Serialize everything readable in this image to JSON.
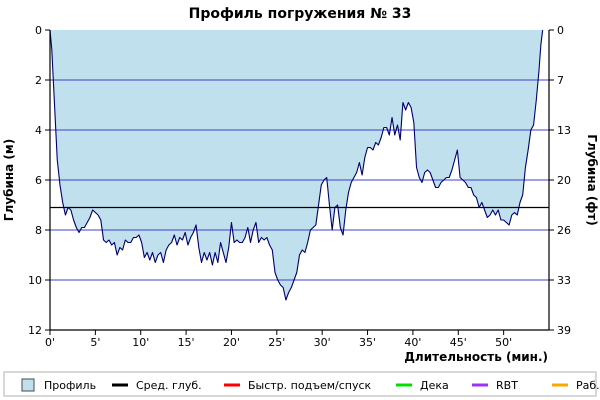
{
  "chart_data": {
    "type": "area",
    "title": "Профиль погружения № 33",
    "xlabel": "Длительность (мин.)",
    "ylabel_left": "Глубина (м)",
    "ylabel_right": "Глубина (фт)",
    "xlim": [
      0,
      55
    ],
    "ylim": [
      0,
      12
    ],
    "y_inverted": true,
    "x_ticks": [
      {
        "value": 0,
        "label": "0'"
      },
      {
        "value": 5,
        "label": "5'"
      },
      {
        "value": 10,
        "label": "10'"
      },
      {
        "value": 15,
        "label": "15'"
      },
      {
        "value": 20,
        "label": "20'"
      },
      {
        "value": 25,
        "label": "25'"
      },
      {
        "value": 30,
        "label": "30'"
      },
      {
        "value": 35,
        "label": "35'"
      },
      {
        "value": 40,
        "label": "40'"
      },
      {
        "value": 45,
        "label": "45'"
      },
      {
        "value": 50,
        "label": "50'"
      }
    ],
    "y_ticks_left": [
      {
        "value": 0,
        "label": "0"
      },
      {
        "value": 2,
        "label": "2"
      },
      {
        "value": 4,
        "label": "4"
      },
      {
        "value": 6,
        "label": "6"
      },
      {
        "value": 8,
        "label": "8"
      },
      {
        "value": 10,
        "label": "10"
      },
      {
        "value": 12,
        "label": "12"
      }
    ],
    "y_ticks_right": [
      {
        "value": 0,
        "label": "0"
      },
      {
        "value": 2,
        "label": "7"
      },
      {
        "value": 4,
        "label": "13"
      },
      {
        "value": 6,
        "label": "20"
      },
      {
        "value": 8,
        "label": "26"
      },
      {
        "value": 10,
        "label": "33"
      },
      {
        "value": 12,
        "label": "39"
      }
    ],
    "grid": "horizontal",
    "average_depth": 7.1,
    "colors": {
      "fill": "#c0e0ee",
      "line": "#00006e",
      "grid": "#4040c8",
      "average": "#000000",
      "fast": "#ff0000",
      "deco": "#00e000",
      "rbt": "#9933ff",
      "work": "#ffa500"
    },
    "profile": [
      [
        0,
        0
      ],
      [
        0.2,
        0.8
      ],
      [
        0.5,
        3.0
      ],
      [
        0.8,
        5.2
      ],
      [
        1.1,
        6.2
      ],
      [
        1.4,
        6.9
      ],
      [
        1.7,
        7.4
      ],
      [
        2.0,
        7.1
      ],
      [
        2.3,
        7.2
      ],
      [
        2.6,
        7.6
      ],
      [
        2.9,
        7.9
      ],
      [
        3.2,
        8.1
      ],
      [
        3.5,
        7.9
      ],
      [
        3.8,
        7.9
      ],
      [
        4.1,
        7.7
      ],
      [
        4.4,
        7.5
      ],
      [
        4.7,
        7.2
      ],
      [
        5.0,
        7.3
      ],
      [
        5.3,
        7.4
      ],
      [
        5.6,
        7.6
      ],
      [
        5.9,
        8.4
      ],
      [
        6.2,
        8.5
      ],
      [
        6.5,
        8.4
      ],
      [
        6.8,
        8.6
      ],
      [
        7.1,
        8.5
      ],
      [
        7.4,
        9.0
      ],
      [
        7.7,
        8.7
      ],
      [
        8.0,
        8.8
      ],
      [
        8.3,
        8.4
      ],
      [
        8.6,
        8.5
      ],
      [
        8.9,
        8.5
      ],
      [
        9.2,
        8.3
      ],
      [
        9.5,
        8.3
      ],
      [
        9.8,
        8.2
      ],
      [
        10.1,
        8.5
      ],
      [
        10.4,
        9.1
      ],
      [
        10.7,
        8.9
      ],
      [
        11.0,
        9.2
      ],
      [
        11.3,
        8.9
      ],
      [
        11.6,
        9.3
      ],
      [
        11.9,
        9.0
      ],
      [
        12.2,
        8.9
      ],
      [
        12.5,
        9.3
      ],
      [
        12.8,
        8.8
      ],
      [
        13.1,
        8.6
      ],
      [
        13.4,
        8.5
      ],
      [
        13.7,
        8.2
      ],
      [
        14.0,
        8.6
      ],
      [
        14.3,
        8.3
      ],
      [
        14.6,
        8.4
      ],
      [
        14.9,
        8.1
      ],
      [
        15.2,
        8.6
      ],
      [
        15.5,
        8.3
      ],
      [
        15.8,
        8.1
      ],
      [
        16.1,
        7.8
      ],
      [
        16.4,
        8.7
      ],
      [
        16.7,
        9.3
      ],
      [
        17.0,
        8.9
      ],
      [
        17.3,
        9.2
      ],
      [
        17.6,
        8.9
      ],
      [
        17.9,
        9.4
      ],
      [
        18.2,
        8.9
      ],
      [
        18.5,
        9.3
      ],
      [
        18.8,
        8.5
      ],
      [
        19.1,
        8.9
      ],
      [
        19.4,
        9.3
      ],
      [
        19.7,
        8.7
      ],
      [
        20.0,
        7.7
      ],
      [
        20.3,
        8.5
      ],
      [
        20.6,
        8.4
      ],
      [
        20.9,
        8.5
      ],
      [
        21.2,
        8.5
      ],
      [
        21.5,
        8.3
      ],
      [
        21.8,
        7.9
      ],
      [
        22.1,
        8.5
      ],
      [
        22.4,
        8.0
      ],
      [
        22.7,
        7.7
      ],
      [
        23.0,
        8.5
      ],
      [
        23.3,
        8.3
      ],
      [
        23.6,
        8.4
      ],
      [
        23.9,
        8.3
      ],
      [
        24.2,
        8.6
      ],
      [
        24.5,
        8.8
      ],
      [
        24.8,
        9.7
      ],
      [
        25.1,
        10.0
      ],
      [
        25.4,
        10.2
      ],
      [
        25.7,
        10.3
      ],
      [
        26.0,
        10.8
      ],
      [
        26.3,
        10.5
      ],
      [
        26.6,
        10.3
      ],
      [
        26.9,
        10.0
      ],
      [
        27.2,
        9.7
      ],
      [
        27.5,
        9.0
      ],
      [
        27.8,
        8.8
      ],
      [
        28.1,
        8.9
      ],
      [
        28.4,
        8.5
      ],
      [
        28.7,
        8.0
      ],
      [
        29.0,
        7.9
      ],
      [
        29.3,
        7.8
      ],
      [
        29.6,
        7.0
      ],
      [
        29.9,
        6.2
      ],
      [
        30.2,
        6.0
      ],
      [
        30.5,
        5.9
      ],
      [
        30.8,
        7.0
      ],
      [
        31.1,
        8.0
      ],
      [
        31.4,
        7.1
      ],
      [
        31.7,
        7.0
      ],
      [
        32.0,
        7.9
      ],
      [
        32.3,
        8.2
      ],
      [
        32.6,
        7.2
      ],
      [
        32.9,
        6.5
      ],
      [
        33.2,
        6.1
      ],
      [
        33.5,
        5.9
      ],
      [
        33.8,
        5.7
      ],
      [
        34.1,
        5.3
      ],
      [
        34.4,
        5.8
      ],
      [
        34.7,
        5.1
      ],
      [
        35.0,
        4.7
      ],
      [
        35.3,
        4.7
      ],
      [
        35.6,
        4.8
      ],
      [
        35.9,
        4.5
      ],
      [
        36.2,
        4.6
      ],
      [
        36.5,
        4.3
      ],
      [
        36.8,
        3.9
      ],
      [
        37.1,
        3.9
      ],
      [
        37.4,
        4.2
      ],
      [
        37.7,
        3.5
      ],
      [
        38.0,
        4.2
      ],
      [
        38.3,
        3.8
      ],
      [
        38.6,
        4.4
      ],
      [
        38.9,
        2.9
      ],
      [
        39.2,
        3.2
      ],
      [
        39.5,
        2.9
      ],
      [
        39.8,
        3.1
      ],
      [
        40.1,
        3.7
      ],
      [
        40.4,
        5.5
      ],
      [
        40.7,
        5.9
      ],
      [
        41.0,
        6.1
      ],
      [
        41.3,
        5.7
      ],
      [
        41.6,
        5.6
      ],
      [
        41.9,
        5.7
      ],
      [
        42.2,
        6.0
      ],
      [
        42.5,
        6.3
      ],
      [
        42.8,
        6.3
      ],
      [
        43.1,
        6.1
      ],
      [
        43.4,
        6.0
      ],
      [
        43.7,
        5.9
      ],
      [
        44.0,
        5.9
      ],
      [
        44.3,
        5.6
      ],
      [
        44.6,
        5.2
      ],
      [
        44.9,
        4.8
      ],
      [
        45.2,
        5.9
      ],
      [
        45.5,
        6.0
      ],
      [
        45.8,
        6.1
      ],
      [
        46.1,
        6.3
      ],
      [
        46.4,
        6.3
      ],
      [
        46.7,
        6.6
      ],
      [
        47.0,
        6.7
      ],
      [
        47.3,
        7.1
      ],
      [
        47.6,
        6.9
      ],
      [
        47.9,
        7.2
      ],
      [
        48.2,
        7.5
      ],
      [
        48.5,
        7.4
      ],
      [
        48.8,
        7.2
      ],
      [
        49.1,
        7.4
      ],
      [
        49.4,
        7.2
      ],
      [
        49.7,
        7.6
      ],
      [
        50.0,
        7.6
      ],
      [
        50.3,
        7.7
      ],
      [
        50.6,
        7.8
      ],
      [
        50.9,
        7.4
      ],
      [
        51.2,
        7.3
      ],
      [
        51.5,
        7.4
      ],
      [
        51.8,
        6.9
      ],
      [
        52.1,
        6.6
      ],
      [
        52.4,
        5.5
      ],
      [
        52.7,
        4.8
      ],
      [
        53.0,
        4.0
      ],
      [
        53.3,
        3.8
      ],
      [
        53.6,
        2.8
      ],
      [
        53.9,
        1.6
      ],
      [
        54.1,
        0.6
      ],
      [
        54.3,
        0
      ]
    ],
    "legend": [
      {
        "label": "Профиль",
        "kind": "box"
      },
      {
        "label": "Сред. глуб.",
        "kind": "line",
        "color": "#000000"
      },
      {
        "label": "Быстр. подъем/спуск",
        "kind": "line",
        "color": "#ff0000"
      },
      {
        "label": "Дека",
        "kind": "line",
        "color": "#00e000"
      },
      {
        "label": "RBT",
        "kind": "line",
        "color": "#9933ff"
      },
      {
        "label": "Раб.",
        "kind": "line",
        "color": "#ffa500"
      }
    ]
  }
}
